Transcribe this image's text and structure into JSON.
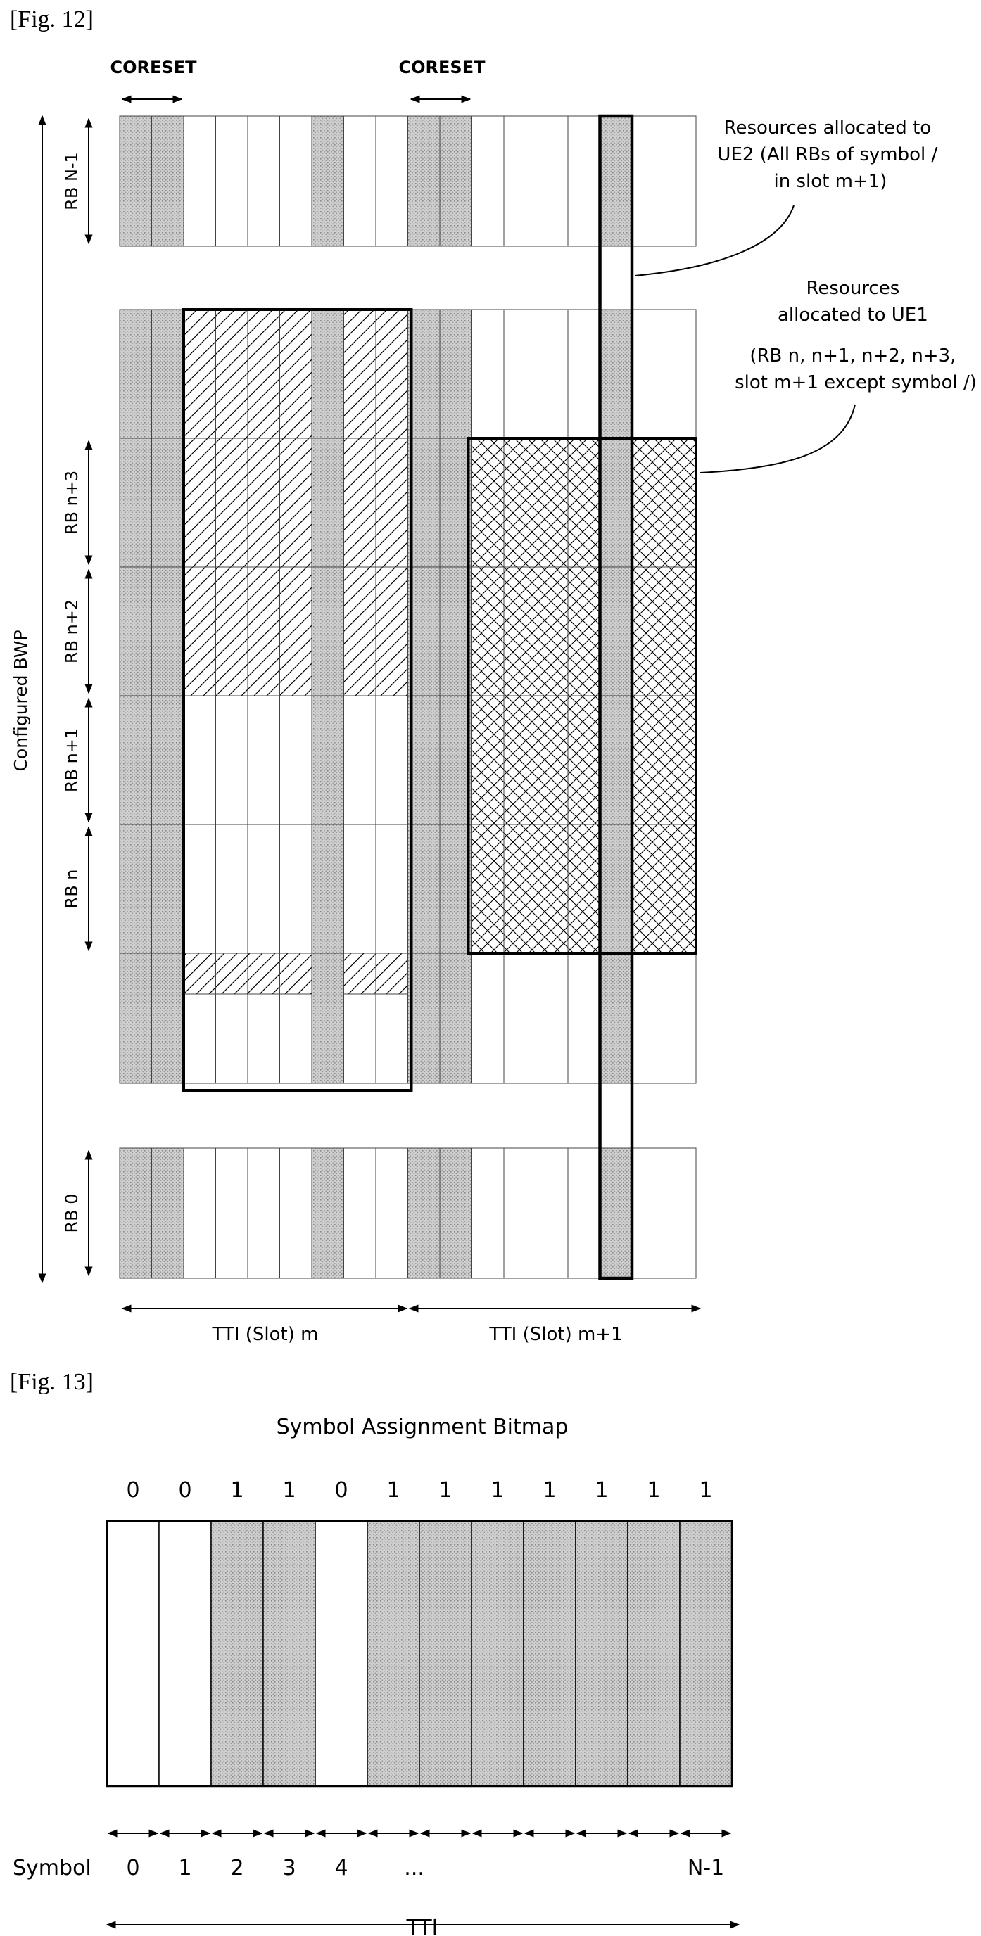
{
  "fig12": {
    "label": "[Fig. 12]",
    "coreset_label": "CORESET",
    "rb_labels": [
      "RB N-1",
      "RB n+3",
      "RB n+2",
      "RB n+1",
      "RB n",
      "RB 0"
    ],
    "bwp_label": "Configured BWP",
    "ue2_callout": [
      "Resources allocated to",
      "UE2 (All RBs of symbol /",
      "in  slot m+1)"
    ],
    "ue1_callout": [
      "Resources",
      "allocated to UE1",
      "(RB n, n+1, n+2, n+3,",
      "slot m+1 except symbol /)"
    ],
    "tti_m_label": "TTI (Slot) m",
    "tti_m1_label": "TTI (Slot) m+1",
    "colors": {
      "shade": "#c8c8c8",
      "line": "#000000",
      "grid": "#555555"
    }
  },
  "fig13": {
    "label": "[Fig. 13]",
    "title": "Symbol Assignment Bitmap",
    "bitmap": [
      "0",
      "0",
      "1",
      "1",
      "0",
      "1",
      "1",
      "1",
      "1",
      "1",
      "1",
      "1"
    ],
    "symbol_label": "Symbol",
    "symbol_ticks": [
      "0",
      "1",
      "2",
      "3",
      "4",
      "...",
      "N-1"
    ],
    "tti_label": "TTI",
    "colors": {
      "assigned": "#c8c8c8",
      "unassigned": "#ffffff"
    }
  }
}
